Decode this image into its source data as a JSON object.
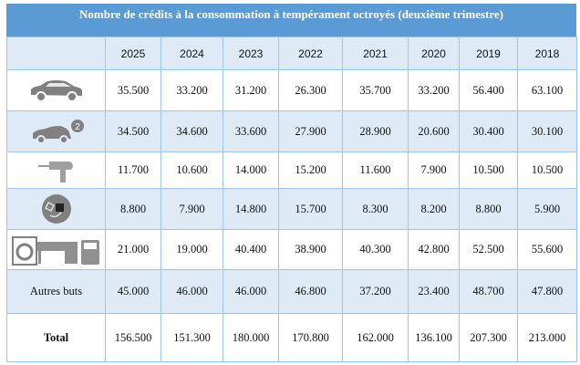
{
  "title": "Nombre de crédits à la consommation à tempérament octroyés (deuxième trimestre)",
  "chart_data": {
    "type": "table",
    "columns": [
      "2025",
      "2024",
      "2023",
      "2022",
      "2021",
      "2020",
      "2019",
      "2018"
    ],
    "rows": [
      {
        "label": "",
        "icon": "car-icon",
        "values": [
          "35.500",
          "33.200",
          "31.200",
          "26.300",
          "35.700",
          "33.200",
          "56.400",
          "63.100"
        ]
      },
      {
        "label": "",
        "icon": "used-car-icon",
        "values": [
          "34.500",
          "34.600",
          "33.600",
          "27.900",
          "28.900",
          "20.600",
          "30.400",
          "30.100"
        ]
      },
      {
        "label": "",
        "icon": "drill-icon",
        "values": [
          "11.700",
          "10.600",
          "14.000",
          "15.200",
          "11.600",
          "7.900",
          "10.500",
          "10.500"
        ]
      },
      {
        "label": "",
        "icon": "electronics-plug-icon",
        "values": [
          "8.800",
          "7.900",
          "14.800",
          "15.700",
          "8.300",
          "8.200",
          "8.800",
          "5.900"
        ]
      },
      {
        "label": "",
        "icon": "appliances-furniture-icon",
        "values": [
          "21.000",
          "19.000",
          "40.400",
          "38.900",
          "40.300",
          "42.800",
          "52.500",
          "55.600"
        ]
      },
      {
        "label": "Autres buts",
        "values": [
          "45.000",
          "46.000",
          "46.000",
          "46.800",
          "37.200",
          "23.400",
          "48.700",
          "47.800"
        ]
      },
      {
        "label": "Total",
        "values": [
          "156.500",
          "151.300",
          "180.000",
          "170.800",
          "162.000",
          "136.100",
          "207.300",
          "213.000"
        ]
      }
    ]
  },
  "colors": {
    "header": "#5b9bd5",
    "alt_row": "#deebf7",
    "border": "#9dc3e6",
    "icon": "#808080"
  }
}
